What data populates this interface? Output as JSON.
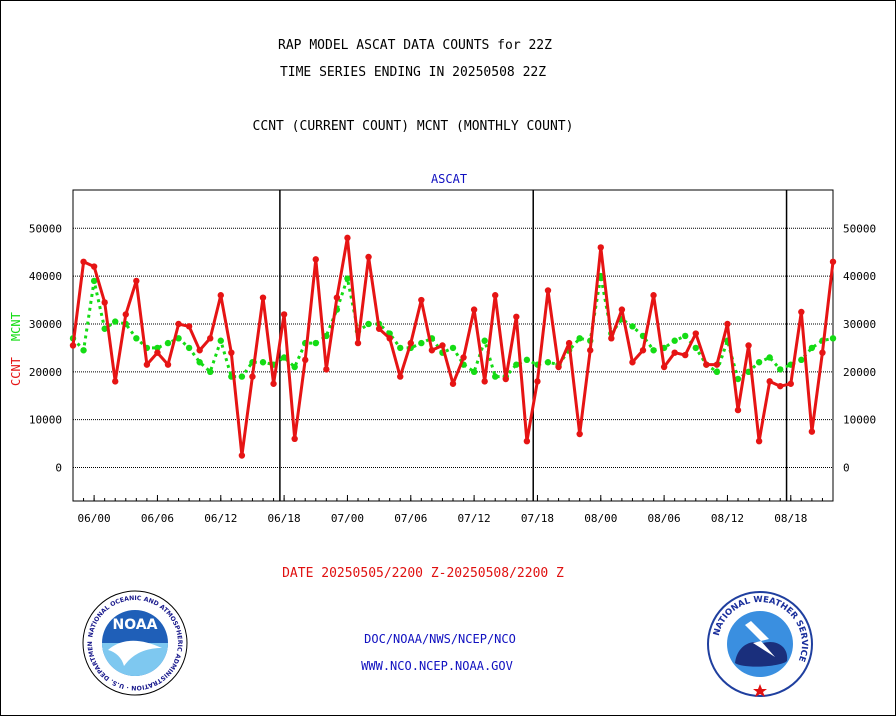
{
  "header": {
    "title_line1": "RAP MODEL ASCAT DATA COUNTS for 22Z",
    "title_line2": "TIME SERIES ENDING IN 20250508 22Z",
    "title_line3": "CCNT (CURRENT COUNT) MCNT (MONTHLY COUNT)"
  },
  "footer": {
    "date_range": "DATE 20250505/2200 Z-20250508/2200 Z",
    "credit_line1": "DOC/NOAA/NWS/NCEP/NCO",
    "credit_line2": "WWW.NCO.NCEP.NOAA.GOV"
  },
  "logos": {
    "left": {
      "icon": "noaa-logo",
      "text": "NOAA",
      "ring_text": "NATIONAL OCEANIC AND ATMOSPHERIC ADMINISTRATION · U.S. DEPARTMENT OF COMMERCE"
    },
    "right": {
      "icon": "nws-logo",
      "ring_text": "NATIONAL WEATHER SERVICE"
    }
  },
  "chart_data": {
    "type": "line",
    "title": "ASCAT",
    "ylabel_left": [
      "CCNT",
      "MCNT"
    ],
    "ylim": [
      -7000,
      58000
    ],
    "yticks": [
      0,
      10000,
      20000,
      30000,
      40000,
      50000
    ],
    "xtick_labels": [
      "06/00",
      "06/06",
      "06/12",
      "06/18",
      "07/00",
      "07/06",
      "07/12",
      "07/18",
      "08/00",
      "08/06",
      "08/12",
      "08/18"
    ],
    "xtick_positions": [
      2,
      8,
      14,
      20,
      26,
      32,
      38,
      44,
      50,
      56,
      62,
      68
    ],
    "xlim": [
      0,
      72
    ],
    "day_boundaries": [
      19.6,
      43.6,
      67.6
    ],
    "grid": true,
    "colors": {
      "CCNT": "#e61414",
      "MCNT": "#14dc14",
      "axis": "#000000"
    },
    "series": [
      {
        "name": "CCNT",
        "style": "solid",
        "values": [
          25500,
          43000,
          42000,
          34500,
          18000,
          32000,
          39000,
          21500,
          24000,
          21500,
          30000,
          29500,
          24500,
          27000,
          36000,
          24000,
          2500,
          19000,
          35500,
          17500,
          32000,
          6000,
          22500,
          43500,
          20500,
          35500,
          48000,
          26000,
          44000,
          29000,
          27000,
          19000,
          26000,
          35000,
          24500,
          25500,
          17500,
          23000,
          33000,
          18000,
          36000,
          18500,
          31500,
          5500,
          18000,
          37000,
          21000,
          26000,
          7000,
          24500,
          46000,
          27000,
          33000,
          22000,
          24500,
          36000,
          21000,
          24000,
          23500,
          28000,
          21500,
          21500,
          30000,
          12000,
          25500,
          5500,
          18000,
          17000,
          17500,
          32500,
          7500,
          24000,
          43000
        ]
      },
      {
        "name": "MCNT",
        "style": "dotted",
        "values": [
          27000,
          24500,
          39000,
          29000,
          30500,
          30000,
          27000,
          25000,
          25000,
          26000,
          27000,
          25000,
          22000,
          20000,
          26500,
          19000,
          19000,
          22000,
          22000,
          21500,
          23000,
          21000,
          26000,
          26000,
          27500,
          33000,
          39500,
          28500,
          30000,
          30000,
          28000,
          25000,
          25000,
          26000,
          27000,
          24000,
          25000,
          21500,
          20000,
          26500,
          19000,
          19000,
          21500,
          22500,
          21500,
          22000,
          21500,
          24500,
          27000,
          26500,
          40000,
          28000,
          31000,
          29500,
          27500,
          24500,
          25000,
          26500,
          27500,
          25000,
          21500,
          20000,
          26500,
          18500,
          20000,
          22000,
          23000,
          20500,
          21500,
          22500,
          25000,
          26500,
          27000
        ]
      }
    ]
  }
}
